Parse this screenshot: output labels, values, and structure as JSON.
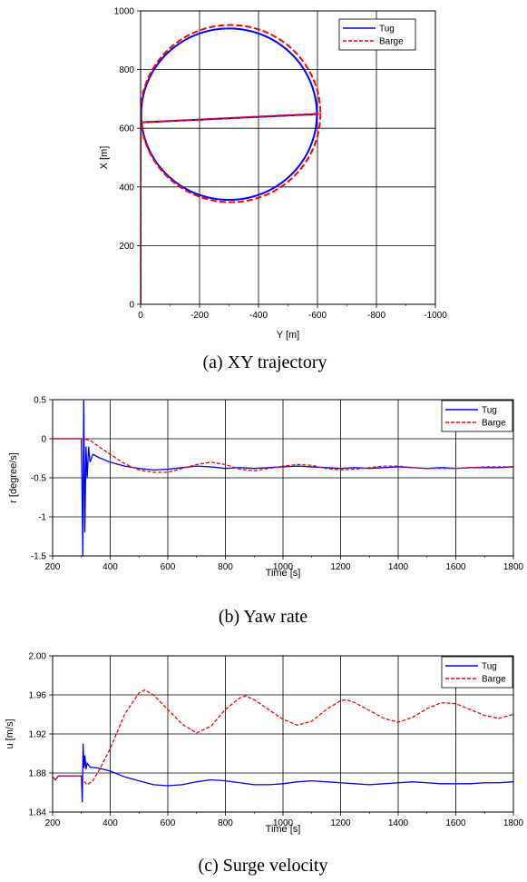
{
  "chart_data": [
    {
      "type": "line",
      "caption": "(a) XY trajectory",
      "xlabel": "Y [m]",
      "ylabel": "X [m]",
      "xlim": [
        0,
        -1000
      ],
      "ylim": [
        0,
        1000
      ],
      "xticks": [
        "0",
        "-200",
        "-400",
        "-600",
        "-800",
        "-1000"
      ],
      "yticks": [
        "0",
        "200",
        "400",
        "600",
        "800",
        "1000"
      ],
      "grid": true,
      "legend": "top-right",
      "series": [
        {
          "name": "Tug",
          "color": "#0000ff",
          "style": "solid",
          "approach": {
            "y": 0,
            "x_from": 0,
            "x_to": 620
          },
          "circle": {
            "center_y": -300,
            "center_x": 648,
            "radius_y": 298,
            "radius_x": 292
          }
        },
        {
          "name": "Barge",
          "color": "#ff0000",
          "style": "dashed",
          "approach": {
            "y": 0,
            "x_from": 0,
            "x_to": 620
          },
          "circle": {
            "center_y": -305,
            "center_x": 650,
            "radius_y": 305,
            "radius_x": 302
          }
        }
      ]
    },
    {
      "type": "line",
      "caption": "(b) Yaw rate",
      "xlabel": "Time [s]",
      "ylabel": "r [degree/s]",
      "xlim": [
        200,
        1800
      ],
      "ylim": [
        -1.5,
        0.5
      ],
      "xticks": [
        "200",
        "400",
        "600",
        "800",
        "1000",
        "1200",
        "1400",
        "1600",
        "1800"
      ],
      "yticks": [
        "-1.5",
        "-1",
        "-0.5",
        "0",
        "0.5"
      ],
      "grid": true,
      "legend": "top-right",
      "series": [
        {
          "name": "Tug",
          "color": "#0000ff",
          "style": "solid",
          "points": [
            [
              200,
              0
            ],
            [
              300,
              0
            ],
            [
              305,
              -1.5
            ],
            [
              308,
              0.55
            ],
            [
              312,
              -1.2
            ],
            [
              316,
              -0.1
            ],
            [
              320,
              -0.5
            ],
            [
              325,
              -0.1
            ],
            [
              330,
              -0.3
            ],
            [
              340,
              -0.2
            ],
            [
              360,
              -0.24
            ],
            [
              400,
              -0.3
            ],
            [
              450,
              -0.35
            ],
            [
              500,
              -0.38
            ],
            [
              550,
              -0.4
            ],
            [
              600,
              -0.39
            ],
            [
              650,
              -0.37
            ],
            [
              700,
              -0.35
            ],
            [
              750,
              -0.36
            ],
            [
              800,
              -0.38
            ],
            [
              850,
              -0.37
            ],
            [
              900,
              -0.38
            ],
            [
              950,
              -0.37
            ],
            [
              1000,
              -0.36
            ],
            [
              1050,
              -0.35
            ],
            [
              1100,
              -0.36
            ],
            [
              1150,
              -0.37
            ],
            [
              1200,
              -0.38
            ],
            [
              1250,
              -0.37
            ],
            [
              1300,
              -0.38
            ],
            [
              1350,
              -0.37
            ],
            [
              1400,
              -0.36
            ],
            [
              1450,
              -0.37
            ],
            [
              1500,
              -0.38
            ],
            [
              1550,
              -0.37
            ],
            [
              1600,
              -0.38
            ],
            [
              1650,
              -0.37
            ],
            [
              1700,
              -0.37
            ],
            [
              1750,
              -0.37
            ],
            [
              1800,
              -0.36
            ]
          ]
        },
        {
          "name": "Barge",
          "color": "#ff0000",
          "style": "dashed",
          "points": [
            [
              200,
              0
            ],
            [
              300,
              0
            ],
            [
              330,
              -0.02
            ],
            [
              360,
              -0.1
            ],
            [
              400,
              -0.2
            ],
            [
              450,
              -0.32
            ],
            [
              500,
              -0.4
            ],
            [
              550,
              -0.43
            ],
            [
              600,
              -0.43
            ],
            [
              650,
              -0.38
            ],
            [
              700,
              -0.33
            ],
            [
              750,
              -0.3
            ],
            [
              800,
              -0.33
            ],
            [
              850,
              -0.39
            ],
            [
              900,
              -0.41
            ],
            [
              950,
              -0.38
            ],
            [
              1000,
              -0.35
            ],
            [
              1050,
              -0.33
            ],
            [
              1100,
              -0.34
            ],
            [
              1150,
              -0.38
            ],
            [
              1200,
              -0.4
            ],
            [
              1250,
              -0.39
            ],
            [
              1300,
              -0.37
            ],
            [
              1350,
              -0.35
            ],
            [
              1400,
              -0.35
            ],
            [
              1450,
              -0.37
            ],
            [
              1500,
              -0.38
            ],
            [
              1550,
              -0.38
            ],
            [
              1600,
              -0.38
            ],
            [
              1650,
              -0.37
            ],
            [
              1700,
              -0.36
            ],
            [
              1750,
              -0.36
            ],
            [
              1800,
              -0.36
            ]
          ]
        }
      ]
    },
    {
      "type": "line",
      "caption": "(c) Surge velocity",
      "xlabel": "Time [s]",
      "ylabel": "u [m/s]",
      "xlim": [
        200,
        1800
      ],
      "ylim": [
        1.84,
        2.0
      ],
      "xticks": [
        "200",
        "400",
        "600",
        "800",
        "1000",
        "1200",
        "1400",
        "1600",
        "1800"
      ],
      "yticks": [
        "1.84",
        "1.88",
        "1.92",
        "1.96",
        "2.00"
      ],
      "grid": true,
      "legend": "top-right",
      "series": [
        {
          "name": "Tug",
          "color": "#0000ff",
          "style": "solid",
          "points": [
            [
              200,
              1.876
            ],
            [
              210,
              1.873
            ],
            [
              220,
              1.877
            ],
            [
              300,
              1.877
            ],
            [
              303,
              1.85
            ],
            [
              306,
              1.91
            ],
            [
              309,
              1.885
            ],
            [
              312,
              1.898
            ],
            [
              316,
              1.884
            ],
            [
              320,
              1.89
            ],
            [
              330,
              1.886
            ],
            [
              360,
              1.885
            ],
            [
              400,
              1.882
            ],
            [
              450,
              1.876
            ],
            [
              500,
              1.872
            ],
            [
              550,
              1.868
            ],
            [
              600,
              1.867
            ],
            [
              650,
              1.868
            ],
            [
              700,
              1.871
            ],
            [
              750,
              1.873
            ],
            [
              800,
              1.872
            ],
            [
              850,
              1.87
            ],
            [
              900,
              1.868
            ],
            [
              950,
              1.868
            ],
            [
              1000,
              1.869
            ],
            [
              1050,
              1.871
            ],
            [
              1100,
              1.872
            ],
            [
              1150,
              1.871
            ],
            [
              1200,
              1.87
            ],
            [
              1250,
              1.869
            ],
            [
              1300,
              1.868
            ],
            [
              1350,
              1.869
            ],
            [
              1400,
              1.87
            ],
            [
              1450,
              1.871
            ],
            [
              1500,
              1.87
            ],
            [
              1550,
              1.869
            ],
            [
              1600,
              1.869
            ],
            [
              1650,
              1.869
            ],
            [
              1700,
              1.87
            ],
            [
              1750,
              1.87
            ],
            [
              1800,
              1.871
            ]
          ]
        },
        {
          "name": "Barge",
          "color": "#ff0000",
          "style": "dashed",
          "points": [
            [
              200,
              1.876
            ],
            [
              210,
              1.873
            ],
            [
              220,
              1.877
            ],
            [
              300,
              1.877
            ],
            [
              310,
              1.871
            ],
            [
              320,
              1.868
            ],
            [
              340,
              1.872
            ],
            [
              360,
              1.882
            ],
            [
              400,
              1.905
            ],
            [
              450,
              1.94
            ],
            [
              500,
              1.962
            ],
            [
              520,
              1.965
            ],
            [
              550,
              1.96
            ],
            [
              600,
              1.945
            ],
            [
              650,
              1.93
            ],
            [
              700,
              1.921
            ],
            [
              750,
              1.928
            ],
            [
              800,
              1.945
            ],
            [
              850,
              1.957
            ],
            [
              870,
              1.959
            ],
            [
              900,
              1.955
            ],
            [
              950,
              1.945
            ],
            [
              1000,
              1.935
            ],
            [
              1050,
              1.929
            ],
            [
              1100,
              1.933
            ],
            [
              1150,
              1.945
            ],
            [
              1200,
              1.954
            ],
            [
              1220,
              1.955
            ],
            [
              1250,
              1.952
            ],
            [
              1300,
              1.944
            ],
            [
              1350,
              1.936
            ],
            [
              1400,
              1.932
            ],
            [
              1450,
              1.937
            ],
            [
              1500,
              1.946
            ],
            [
              1550,
              1.952
            ],
            [
              1600,
              1.951
            ],
            [
              1650,
              1.945
            ],
            [
              1700,
              1.939
            ],
            [
              1750,
              1.936
            ],
            [
              1800,
              1.94
            ]
          ]
        }
      ]
    }
  ]
}
